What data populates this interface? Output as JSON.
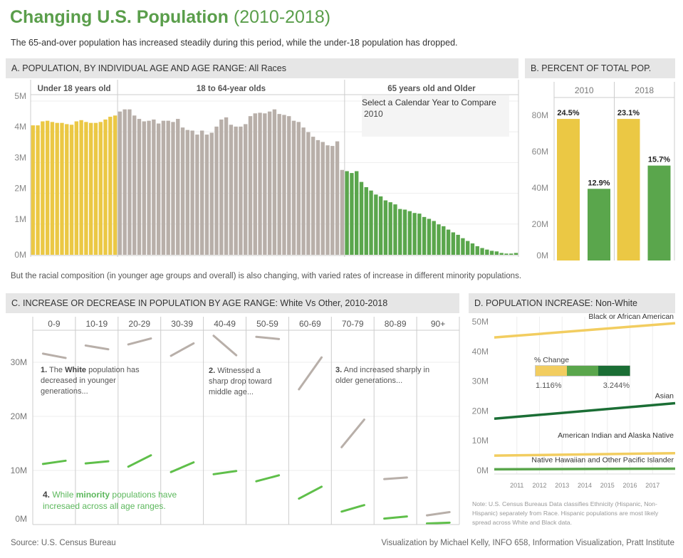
{
  "title": {
    "main": "Changing U.S. Population",
    "range": "(2010-2018)"
  },
  "subtitle": "The 65-and-over population has increased steadily during this period, while the under-18 population has dropped.",
  "colors": {
    "title": "#5a9e4b",
    "under18": "#ebc844",
    "adult": "#b8afa9",
    "senior": "#5aa64c",
    "minority": "#5fbf4a",
    "dark_green": "#1b6e35",
    "light_yellow": "#f2cd60"
  },
  "section_a": {
    "heading": "A. POPULATION, BY INDIVIDUAL AGE AND AGE RANGE:",
    "heading_suffix": "All Races"
  },
  "section_b": {
    "heading": "B. PERCENT OF TOTAL POP."
  },
  "section_c": {
    "heading": "C. INCREASE OR DECREASE IN POPULATION BY AGE RANGE:",
    "heading_suffix": "White Vs Other, 2010-2018"
  },
  "section_d": {
    "heading": "D. POPULATION INCREASE:",
    "heading_suffix": "Non-White"
  },
  "filter": {
    "label": "Select a Calendar Year to Compare",
    "value": "2010"
  },
  "caption": "But the  racial composition (in younger age groups and overall) is also changing,  with varied rates of increase in different minority populations.",
  "annotations": {
    "a1_num": "1.",
    "a1_pre": "The",
    "a1_bold": "White",
    "a1_rest": "population has decreased in younger generations...",
    "a2_num": "2.",
    "a2_rest": "Witnessed a sharp drop toward middle age...",
    "a3_num": "3.",
    "a3_rest": "And increased sharply in older generations...",
    "a4_num": "4.",
    "a4_pre": "While",
    "a4_bold": "minority",
    "a4_rest": "populations have incresaed across all age ranges."
  },
  "note": "Note: U.S. Census Bureaus Data classifies Ethnicity (Hispanic, Non-Hispanic) separately from Race. Hispanic populations are most likely spread across White and Black data.",
  "footer": {
    "source": "Source: U.S. Census Bureau",
    "credit": "Visualization by Michael Kelly, INFO 658, Information Visualization, Pratt Institute"
  },
  "chart_data": [
    {
      "type": "bar",
      "id": "A",
      "ylim": [
        0,
        5
      ],
      "yticks": [
        "0M",
        "1M",
        "2M",
        "3M",
        "4M",
        "5M"
      ],
      "grid": true,
      "groups": [
        {
          "label": "Under 18 years old",
          "color": "#ebc844",
          "values": [
            4.21,
            4.21,
            4.34,
            4.36,
            4.32,
            4.29,
            4.29,
            4.25,
            4.23,
            4.34,
            4.38,
            4.32,
            4.29,
            4.29,
            4.32,
            4.4,
            4.49,
            4.53
          ]
        },
        {
          "label": "18 to 64-year olds",
          "color": "#b8afa9",
          "values": [
            4.66,
            4.73,
            4.73,
            4.53,
            4.42,
            4.34,
            4.36,
            4.4,
            4.27,
            4.36,
            4.36,
            4.32,
            4.42,
            4.14,
            4.06,
            4.04,
            3.91,
            4.04,
            3.91,
            3.97,
            4.17,
            4.4,
            4.47,
            4.23,
            4.17,
            4.17,
            4.25,
            4.51,
            4.6,
            4.62,
            4.6,
            4.66,
            4.73,
            4.58,
            4.55,
            4.51,
            4.36,
            4.32,
            4.14,
            3.99,
            3.84,
            3.73,
            3.67,
            3.56,
            3.54,
            3.69,
            2.76
          ]
        },
        {
          "label": "65 years old and Older",
          "color": "#5aa64c",
          "values": [
            2.72,
            2.66,
            2.72,
            2.37,
            2.2,
            2.09,
            1.96,
            1.9,
            1.77,
            1.71,
            1.64,
            1.49,
            1.47,
            1.42,
            1.36,
            1.34,
            1.23,
            1.17,
            1.1,
            0.99,
            0.93,
            0.82,
            0.73,
            0.65,
            0.54,
            0.45,
            0.37,
            0.28,
            0.22,
            0.17,
            0.13,
            0.11,
            0.06,
            0.04,
            0.04,
            0.06
          ]
        }
      ]
    },
    {
      "type": "bar",
      "id": "B",
      "ylim": [
        0,
        80
      ],
      "yticks": [
        "0M",
        "20M",
        "40M",
        "60M",
        "80M"
      ],
      "columns": [
        {
          "label": "2010",
          "bars": [
            {
              "value": 78.0,
              "label": "24.5%",
              "color": "#ebc844"
            },
            {
              "value": 39.5,
              "label": "12.9%",
              "color": "#5aa64c"
            }
          ]
        },
        {
          "label": "2018",
          "bars": [
            {
              "value": 78.0,
              "label": "23.1%",
              "color": "#ebc844"
            },
            {
              "value": 52.3,
              "label": "15.7%",
              "color": "#5aa64c"
            }
          ]
        }
      ]
    },
    {
      "type": "line",
      "id": "C",
      "ylim": [
        0,
        35
      ],
      "yticks": [
        "0M",
        "10M",
        "20M",
        "30M"
      ],
      "categories": [
        "0-9",
        "10-19",
        "20-29",
        "30-39",
        "40-49",
        "50-59",
        "60-69",
        "70-79",
        "80-89",
        "90+"
      ],
      "x": [
        "2010",
        "2018"
      ],
      "series": [
        {
          "color": "#b8afa9",
          "values": [
            [
              31.6,
              30.8
            ],
            [
              33.1,
              32.4
            ],
            [
              33.3,
              34.4
            ],
            [
              31.2,
              33.5
            ],
            [
              34.9,
              31.3
            ],
            [
              34.7,
              34.3
            ],
            [
              25.0,
              30.9
            ],
            [
              14.3,
              19.4
            ],
            [
              8.4,
              8.7
            ],
            [
              1.7,
              2.3
            ]
          ]
        },
        {
          "color": "#5fbf4a",
          "values": [
            [
              11.2,
              11.8
            ],
            [
              11.3,
              11.7
            ],
            [
              10.7,
              12.8
            ],
            [
              9.7,
              11.5
            ],
            [
              9.3,
              9.9
            ],
            [
              8.0,
              9.1
            ],
            [
              4.8,
              7.0
            ],
            [
              2.4,
              3.6
            ],
            [
              1.1,
              1.5
            ],
            [
              0.2,
              0.35
            ]
          ]
        }
      ]
    },
    {
      "type": "line",
      "id": "D",
      "xlim": [
        2010,
        2018
      ],
      "xticks": [
        "2011",
        "2012",
        "2013",
        "2014",
        "2015",
        "2016",
        "2017"
      ],
      "ylim": [
        0,
        50
      ],
      "yticks": [
        "0M",
        "10M",
        "20M",
        "30M",
        "40M",
        "50M"
      ],
      "legend": {
        "title": "% Change",
        "min_label": "1.116%",
        "max_label": "3.244%",
        "colors": [
          "#f2cd60",
          "#5aa64c",
          "#1b6e35"
        ]
      },
      "series": [
        {
          "name": "Black or African American",
          "color": "#f2cd60",
          "values": [
            44.7,
            49.5
          ]
        },
        {
          "name": "Asian",
          "color": "#1b6e35",
          "values": [
            17.4,
            22.6
          ]
        },
        {
          "name": "American Indian and Alaska Native",
          "color": "#f2cd60",
          "values": [
            5.0,
            5.8
          ]
        },
        {
          "name": "Native Hawaiian and Other Pacific Islander",
          "color": "#5aa64c",
          "values": [
            0.4,
            0.6
          ]
        }
      ]
    }
  ]
}
